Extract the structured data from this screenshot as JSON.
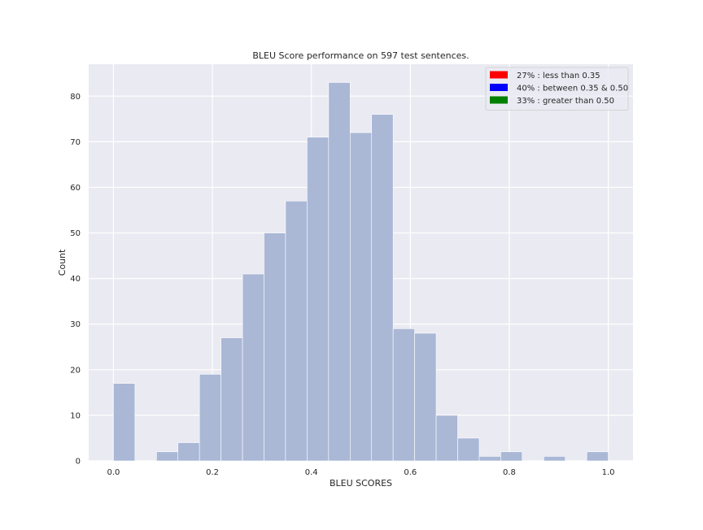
{
  "chart_data": {
    "type": "bar",
    "title": "BLEU Score performance on 597 test sentences.",
    "xlabel": "BLEU SCORES",
    "ylabel": "Count",
    "xlim": [
      -0.05,
      1.05
    ],
    "ylim": [
      0,
      87
    ],
    "grid": true,
    "x_ticks": [
      "0.0",
      "0.2",
      "0.4",
      "0.6",
      "0.8",
      "1.0"
    ],
    "y_ticks": [
      "0",
      "10",
      "20",
      "30",
      "40",
      "50",
      "60",
      "70",
      "80"
    ],
    "bin_width": 0.0435,
    "bins": [
      {
        "x": 0.0,
        "count": 17
      },
      {
        "x": 0.0435,
        "count": 0
      },
      {
        "x": 0.087,
        "count": 2
      },
      {
        "x": 0.1304,
        "count": 4
      },
      {
        "x": 0.1739,
        "count": 19
      },
      {
        "x": 0.2174,
        "count": 27
      },
      {
        "x": 0.2609,
        "count": 41
      },
      {
        "x": 0.3043,
        "count": 50
      },
      {
        "x": 0.3478,
        "count": 57
      },
      {
        "x": 0.3913,
        "count": 71
      },
      {
        "x": 0.4348,
        "count": 83
      },
      {
        "x": 0.4783,
        "count": 72
      },
      {
        "x": 0.5217,
        "count": 76
      },
      {
        "x": 0.5652,
        "count": 29
      },
      {
        "x": 0.6087,
        "count": 28
      },
      {
        "x": 0.6522,
        "count": 10
      },
      {
        "x": 0.6957,
        "count": 5
      },
      {
        "x": 0.7391,
        "count": 1
      },
      {
        "x": 0.7826,
        "count": 2
      },
      {
        "x": 0.8261,
        "count": 0
      },
      {
        "x": 0.8696,
        "count": 1
      },
      {
        "x": 0.913,
        "count": 0
      },
      {
        "x": 0.9565,
        "count": 2
      }
    ],
    "legend": {
      "placement": "top-right",
      "entries": [
        {
          "label": "27% : less than 0.35",
          "color": "#ff0000"
        },
        {
          "label": "40% : between 0.35 & 0.50",
          "color": "#0000ff"
        },
        {
          "label": "33% : greater than 0.50",
          "color": "#008000"
        }
      ]
    },
    "colors": {
      "background": "#eaeaf2",
      "grid": "#ffffff",
      "bar_fill": "#aab8d6",
      "bar_edge": "#ffffff"
    }
  }
}
